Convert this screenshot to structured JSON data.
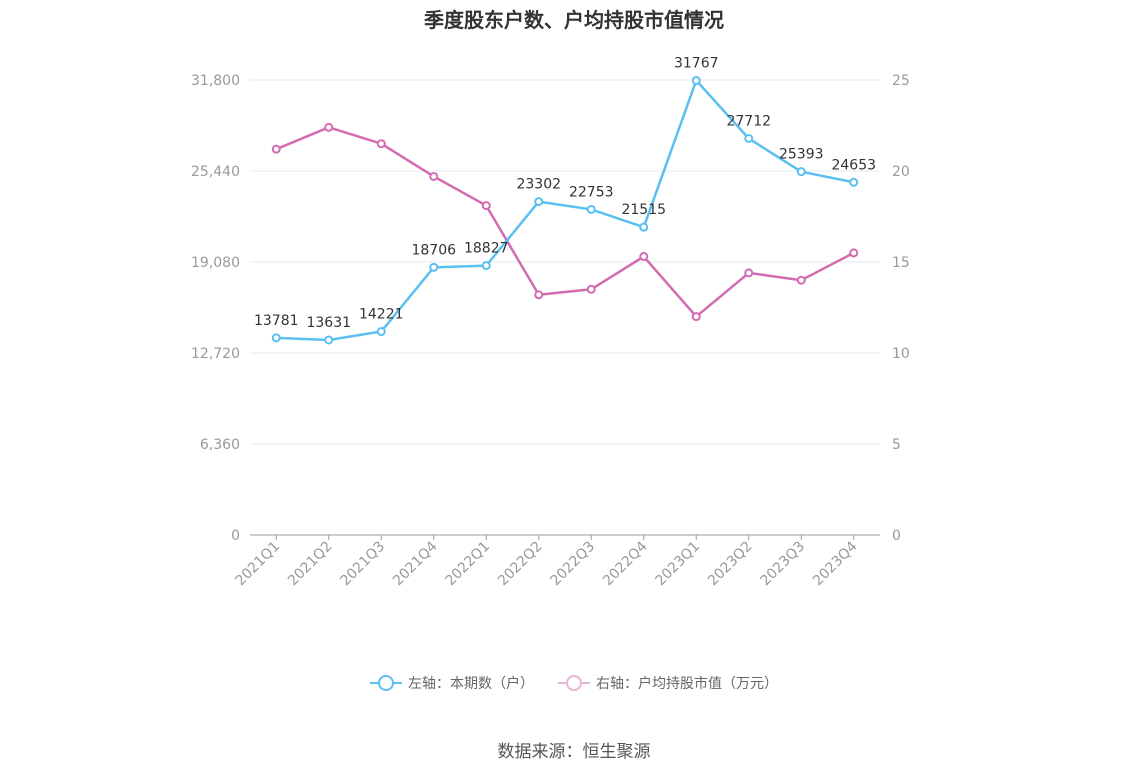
{
  "chart_data": {
    "type": "line",
    "title": "季度股东户数、户均持股市值情况",
    "categories": [
      "2021Q1",
      "2021Q2",
      "2021Q3",
      "2021Q4",
      "2022Q1",
      "2022Q2",
      "2022Q3",
      "2022Q4",
      "2023Q1",
      "2023Q2",
      "2023Q3",
      "2023Q4"
    ],
    "left_axis": {
      "ticks": [
        "0",
        "6,360",
        "12,720",
        "19,080",
        "25,440",
        "31,800"
      ],
      "ylim": [
        0,
        31800
      ]
    },
    "right_axis": {
      "ticks": [
        "0",
        "5",
        "10",
        "15",
        "20",
        "25"
      ],
      "ylim": [
        0,
        25
      ]
    },
    "series": [
      {
        "name": "左轴：本期数（户）",
        "axis": "left",
        "color": "#5bc0f0",
        "values": [
          13781,
          13631,
          14221,
          18706,
          18827,
          23302,
          22753,
          21515,
          31767,
          27712,
          25393,
          24653
        ],
        "labels": [
          "13781",
          "13631",
          "14221",
          "18706",
          "18827",
          "23302",
          "22753",
          "21515",
          "31767",
          "27712",
          "25393",
          "24653"
        ]
      },
      {
        "name": "右轴：户均持股市值（万元）",
        "axis": "right",
        "color": "#d36bb0",
        "values": [
          21.2,
          22.4,
          21.5,
          19.7,
          18.1,
          13.2,
          13.5,
          15.3,
          12.0,
          14.4,
          14.0,
          15.5
        ]
      }
    ],
    "grid": true,
    "legend_position": "bottom"
  },
  "source": "数据来源：恒生聚源"
}
